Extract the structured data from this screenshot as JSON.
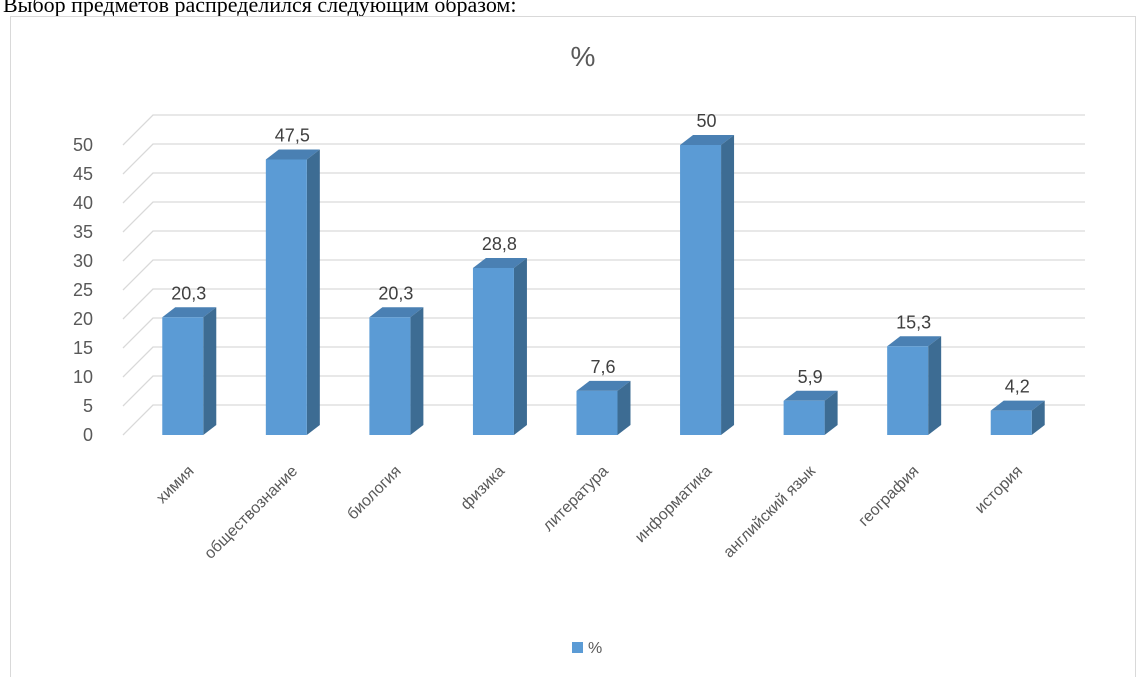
{
  "document": {
    "text": "Выбор предметов распределился следующим образом:"
  },
  "chart_data": {
    "type": "bar",
    "title": "%",
    "categories": [
      "химия",
      "обществознание",
      "биология",
      "физика",
      "литература",
      "информатика",
      "английский язык",
      "география",
      "история"
    ],
    "series": [
      {
        "name": "%",
        "values": [
          20.3,
          47.5,
          20.3,
          28.8,
          7.6,
          50,
          5.9,
          15.3,
          4.2
        ],
        "labels": [
          "20,3",
          "47,5",
          "20,3",
          "28,8",
          "7,6",
          "50",
          "5,9",
          "15,3",
          "4,2"
        ]
      }
    ],
    "ylim": [
      0,
      50
    ],
    "yticks": [
      0,
      5,
      10,
      15,
      20,
      25,
      30,
      35,
      40,
      45,
      50
    ],
    "grid": true,
    "legend_position": "bottom",
    "style": "3d-column",
    "colors": {
      "bar_front": "#5b9bd5",
      "bar_side": "#3d6c93",
      "bar_top": "#4a80b3",
      "grid": "#d9d9d9",
      "text": "#595959"
    }
  }
}
